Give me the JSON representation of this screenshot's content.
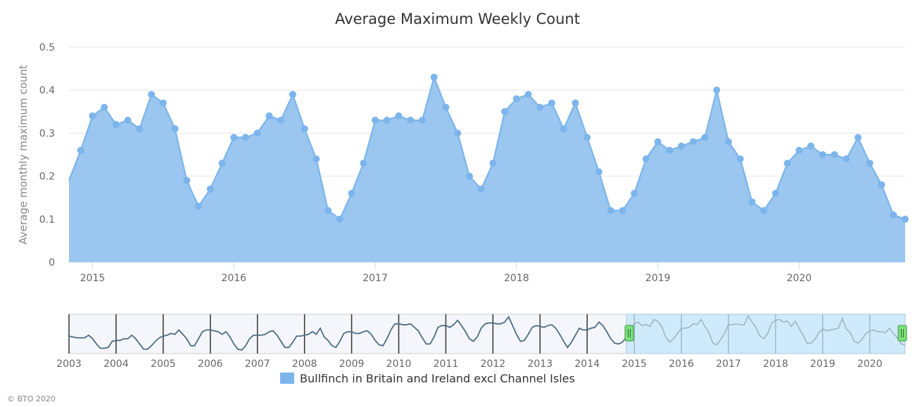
{
  "chart_data": {
    "type": "area",
    "title": "Average Maximum Weekly Count",
    "ylabel": "Average monthly maximum count",
    "xlabel": "",
    "ylim": [
      0,
      0.5
    ],
    "yticks": [
      "0",
      "0.1",
      "0.2",
      "0.3",
      "0.4",
      "0.5"
    ],
    "xlim": [
      "2014-11",
      "2020-10"
    ],
    "xticks": [
      "2015",
      "2016",
      "2017",
      "2018",
      "2019",
      "2020"
    ],
    "grid": true,
    "legend_position": "bottom",
    "colors": {
      "line": "#7cb5ec",
      "fill": "#95c3ee",
      "navigator_line": "#4d6e85",
      "navigator_selected": "#cfeafa",
      "handle": "#7de07d"
    },
    "series": [
      {
        "name": "Bullfinch in Britain and Ireland excl Channel Isles",
        "start": "2014-11",
        "frequency": "monthly",
        "values": [
          0.19,
          0.26,
          0.34,
          0.36,
          0.32,
          0.33,
          0.31,
          0.39,
          0.37,
          0.31,
          0.19,
          0.13,
          0.17,
          0.23,
          0.29,
          0.29,
          0.3,
          0.34,
          0.33,
          0.39,
          0.31,
          0.24,
          0.12,
          0.1,
          0.16,
          0.23,
          0.33,
          0.33,
          0.34,
          0.33,
          0.33,
          0.43,
          0.36,
          0.3,
          0.2,
          0.17,
          0.23,
          0.35,
          0.38,
          0.39,
          0.36,
          0.37,
          0.31,
          0.37,
          0.29,
          0.21,
          0.12,
          0.12,
          0.16,
          0.24,
          0.28,
          0.26,
          0.27,
          0.28,
          0.29,
          0.4,
          0.28,
          0.24,
          0.14,
          0.12,
          0.16,
          0.23,
          0.26,
          0.27,
          0.25,
          0.25,
          0.24,
          0.29,
          0.23,
          0.18,
          0.11,
          0.1
        ]
      }
    ],
    "navigator": {
      "xlim": [
        "2003-01",
        "2020-10"
      ],
      "xticks": [
        "2003",
        "2004",
        "2005",
        "2006",
        "2007",
        "2008",
        "2009",
        "2010",
        "2011",
        "2012",
        "2013",
        "2014",
        "2015",
        "2016",
        "2017",
        "2018",
        "2019",
        "2020"
      ],
      "selection": [
        "2014-11",
        "2020-10"
      ],
      "earlier_values_start": "2003-01",
      "earlier_values": [
        0.2,
        0.19,
        0.18,
        0.18,
        0.18,
        0.21,
        0.17,
        0.11,
        0.06,
        0.06,
        0.07,
        0.14,
        0.15,
        0.15,
        0.17,
        0.17,
        0.21,
        0.17,
        0.11,
        0.05,
        0.05,
        0.09,
        0.14,
        0.18,
        0.2,
        0.21,
        0.23,
        0.22,
        0.27,
        0.22,
        0.17,
        0.09,
        0.09,
        0.17,
        0.25,
        0.27,
        0.27,
        0.26,
        0.25,
        0.22,
        0.25,
        0.19,
        0.11,
        0.05,
        0.04,
        0.09,
        0.17,
        0.21,
        0.21,
        0.21,
        0.22,
        0.25,
        0.26,
        0.21,
        0.14,
        0.07,
        0.07,
        0.13,
        0.2,
        0.2,
        0.21,
        0.22,
        0.25,
        0.22,
        0.29,
        0.19,
        0.15,
        0.09,
        0.07,
        0.14,
        0.23,
        0.25,
        0.25,
        0.23,
        0.23,
        0.25,
        0.26,
        0.22,
        0.15,
        0.1,
        0.09,
        0.17,
        0.27,
        0.34,
        0.34,
        0.33,
        0.33,
        0.34,
        0.3,
        0.26,
        0.18,
        0.11,
        0.11,
        0.19,
        0.3,
        0.32,
        0.32,
        0.3,
        0.33,
        0.38,
        0.32,
        0.25,
        0.17,
        0.14,
        0.19,
        0.29,
        0.34,
        0.35,
        0.35,
        0.34,
        0.34,
        0.36,
        0.42,
        0.32,
        0.22,
        0.14,
        0.15,
        0.22,
        0.3,
        0.32,
        0.31,
        0.3,
        0.32,
        0.33,
        0.29,
        0.22,
        0.14,
        0.07,
        0.13,
        0.21,
        0.29,
        0.27,
        0.27,
        0.29,
        0.3,
        0.36,
        0.32,
        0.25,
        0.17,
        0.12,
        0.11,
        0.13
      ]
    }
  },
  "credit": "© BTO 2020"
}
